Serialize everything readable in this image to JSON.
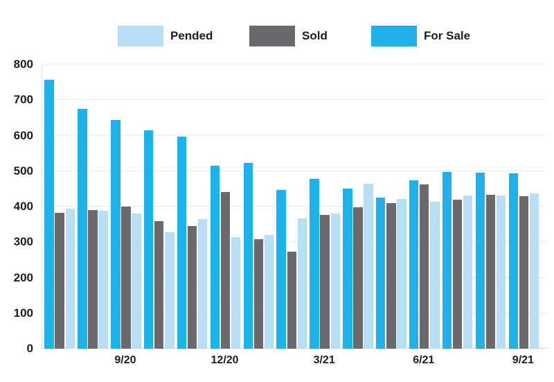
{
  "legend": {
    "items": [
      {
        "label": "Pended",
        "color": "#b8def5"
      },
      {
        "label": "Sold",
        "color": "#6a6a6e"
      },
      {
        "label": "For Sale",
        "color": "#1fb1e8"
      }
    ]
  },
  "chart_data": {
    "type": "bar",
    "title": "",
    "n_groups": 15,
    "series": [
      {
        "name": "For Sale",
        "color": "#1fb1e8",
        "values": [
          757,
          676,
          644,
          615,
          598,
          516,
          522,
          446,
          478,
          450,
          425,
          475,
          498,
          496,
          493
        ]
      },
      {
        "name": "Sold",
        "color": "#6a6a6e",
        "values": [
          383,
          391,
          401,
          360,
          346,
          441,
          308,
          274,
          377,
          399,
          410,
          462,
          419,
          434,
          429
        ]
      },
      {
        "name": "Pended",
        "color": "#b8def5",
        "values": [
          395,
          389,
          380,
          328,
          364,
          314,
          320,
          366,
          381,
          464,
          421,
          414,
          431,
          431,
          437
        ]
      }
    ],
    "bar_order": [
      "For Sale",
      "Sold",
      "Pended"
    ],
    "legend_order": [
      "Pended",
      "Sold",
      "For Sale"
    ],
    "ylim": [
      0,
      800
    ],
    "y_tick_step": 100,
    "y_tick_labels": [
      "0",
      "100",
      "200",
      "300",
      "400",
      "500",
      "600",
      "700",
      "800"
    ],
    "x_ticks": [
      {
        "group": 3,
        "label": "9/20"
      },
      {
        "group": 6,
        "label": "12/20"
      },
      {
        "group": 9,
        "label": "3/21"
      },
      {
        "group": 12,
        "label": "6/21"
      },
      {
        "group": 15,
        "label": "9/21"
      }
    ],
    "grid": "horizontal",
    "legend_position": "top"
  }
}
